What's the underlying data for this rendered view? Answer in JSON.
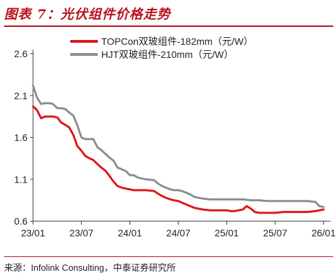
{
  "figure": {
    "title": "图表 7：光伏组件价格走势",
    "source": "来源：Infolink Consulting，中泰证券研究所"
  },
  "colors": {
    "accent": "#b8111e",
    "series_red": "#e0141c",
    "series_gray": "#8c8c8c"
  },
  "chart_data": {
    "type": "line",
    "ylim": [
      0.6,
      2.6
    ],
    "yticks": [
      "0.6",
      "1.1",
      "1.6",
      "2.1",
      "2.6"
    ],
    "xlim": [
      "2023-01",
      "2026-01"
    ],
    "xticks": [
      "23/01",
      "23/07",
      "24/01",
      "24/07",
      "25/01",
      "25/07",
      "26/01"
    ],
    "legend_position": "top",
    "grid": false,
    "series": [
      {
        "name": "TOPCon双玻组件-182mm（元/W）",
        "color": "#e0141c",
        "x": [
          "2023-01-01",
          "2023-01-15",
          "2023-02-01",
          "2023-02-15",
          "2023-03-01",
          "2023-03-15",
          "2023-04-01",
          "2023-04-15",
          "2023-05-01",
          "2023-05-15",
          "2023-06-01",
          "2023-06-15",
          "2023-07-01",
          "2023-07-15",
          "2023-08-01",
          "2023-08-15",
          "2023-09-01",
          "2023-09-15",
          "2023-10-01",
          "2023-10-15",
          "2023-11-01",
          "2023-11-15",
          "2023-12-01",
          "2023-12-15",
          "2024-01-01",
          "2024-01-15",
          "2024-02-01",
          "2024-03-01",
          "2024-04-01",
          "2024-04-15",
          "2024-05-01",
          "2024-05-15",
          "2024-06-01",
          "2024-06-15",
          "2024-07-01",
          "2024-07-15",
          "2024-08-01",
          "2024-08-15",
          "2024-09-01",
          "2024-10-01",
          "2024-11-01",
          "2024-12-01",
          "2025-01-01",
          "2025-01-15",
          "2025-02-01",
          "2025-02-15",
          "2025-03-01",
          "2025-03-15",
          "2025-04-01",
          "2025-04-15",
          "2025-05-01",
          "2025-06-01",
          "2025-07-01",
          "2025-08-01",
          "2025-09-01",
          "2025-10-01",
          "2025-11-01",
          "2025-12-01",
          "2026-01-01"
        ],
        "values": [
          1.97,
          1.93,
          1.83,
          1.85,
          1.85,
          1.85,
          1.84,
          1.78,
          1.75,
          1.72,
          1.63,
          1.5,
          1.44,
          1.38,
          1.35,
          1.33,
          1.28,
          1.24,
          1.2,
          1.14,
          1.07,
          1.02,
          1.0,
          0.99,
          0.98,
          0.97,
          0.97,
          0.97,
          0.96,
          0.93,
          0.9,
          0.88,
          0.86,
          0.85,
          0.84,
          0.82,
          0.8,
          0.78,
          0.76,
          0.74,
          0.73,
          0.73,
          0.73,
          0.72,
          0.72,
          0.73,
          0.74,
          0.78,
          0.75,
          0.71,
          0.7,
          0.7,
          0.7,
          0.71,
          0.71,
          0.71,
          0.71,
          0.72,
          0.74
        ]
      },
      {
        "name": "HJT双玻组件-210mm（元/W）",
        "color": "#8c8c8c",
        "x": [
          "2023-01-01",
          "2023-01-15",
          "2023-02-01",
          "2023-02-15",
          "2023-03-01",
          "2023-03-15",
          "2023-04-01",
          "2023-04-15",
          "2023-05-01",
          "2023-05-15",
          "2023-06-01",
          "2023-06-15",
          "2023-07-01",
          "2023-07-15",
          "2023-08-01",
          "2023-08-15",
          "2023-09-01",
          "2023-09-15",
          "2023-10-01",
          "2023-10-15",
          "2023-11-01",
          "2023-11-15",
          "2023-12-01",
          "2023-12-15",
          "2024-01-01",
          "2024-01-15",
          "2024-02-01",
          "2024-03-01",
          "2024-04-01",
          "2024-04-15",
          "2024-05-01",
          "2024-05-15",
          "2024-06-01",
          "2024-06-15",
          "2024-07-01",
          "2024-07-15",
          "2024-08-01",
          "2024-08-15",
          "2024-09-01",
          "2024-10-01",
          "2024-11-01",
          "2024-12-01",
          "2025-01-01",
          "2025-02-01",
          "2025-03-01",
          "2025-04-01",
          "2025-05-01",
          "2025-06-01",
          "2025-07-01",
          "2025-08-01",
          "2025-09-01",
          "2025-10-01",
          "2025-11-01",
          "2025-12-01",
          "2025-12-15",
          "2026-01-01"
        ],
        "values": [
          2.22,
          2.08,
          2.0,
          2.01,
          2.01,
          2.0,
          1.95,
          1.95,
          1.94,
          1.9,
          1.86,
          1.75,
          1.6,
          1.58,
          1.58,
          1.58,
          1.48,
          1.45,
          1.4,
          1.36,
          1.32,
          1.24,
          1.22,
          1.2,
          1.15,
          1.15,
          1.12,
          1.1,
          1.09,
          1.05,
          1.02,
          1.0,
          0.98,
          0.97,
          0.97,
          0.96,
          0.94,
          0.92,
          0.89,
          0.87,
          0.86,
          0.86,
          0.86,
          0.86,
          0.86,
          0.85,
          0.85,
          0.84,
          0.84,
          0.84,
          0.84,
          0.84,
          0.84,
          0.83,
          0.78,
          0.77
        ]
      }
    ]
  }
}
